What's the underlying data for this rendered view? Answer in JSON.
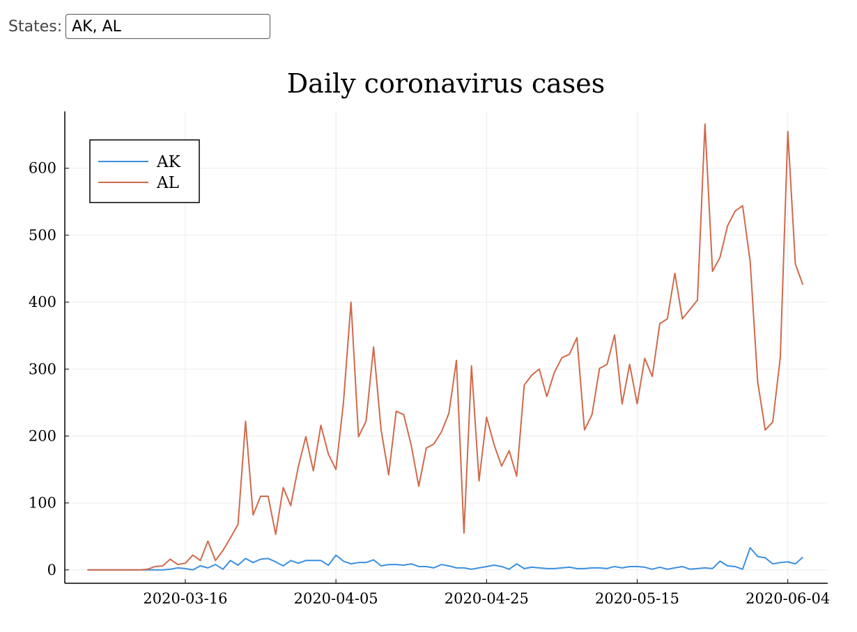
{
  "filter": {
    "label": "States:",
    "value": "AK, AL"
  },
  "colors": {
    "AK": "#3a8fe0",
    "AL": "#d0694a",
    "grid": "#ebebeb",
    "axis": "#000000"
  },
  "chart_data": {
    "type": "line",
    "title": "Daily coronavirus cases",
    "xlabel": "",
    "ylabel": "",
    "x_start": "2020-03-03",
    "x_ticks": [
      "2020-03-16",
      "2020-04-05",
      "2020-04-25",
      "2020-05-15",
      "2020-06-04"
    ],
    "y_ticks": [
      0,
      100,
      200,
      300,
      400,
      500,
      600
    ],
    "ylim": [
      -20,
      685
    ],
    "grid": true,
    "legend": "top-left",
    "series": [
      {
        "name": "AK",
        "values": [
          0,
          0,
          0,
          0,
          0,
          0,
          0,
          0,
          0,
          0,
          0,
          1,
          3,
          2,
          0,
          6,
          3,
          8,
          1,
          14,
          7,
          17,
          11,
          16,
          17,
          12,
          6,
          14,
          10,
          14,
          14,
          14,
          7,
          22,
          13,
          9,
          11,
          11,
          15,
          6,
          8,
          8,
          7,
          9,
          5,
          5,
          3,
          8,
          6,
          3,
          3,
          1,
          3,
          5,
          7,
          5,
          1,
          9,
          2,
          4,
          3,
          2,
          2,
          3,
          4,
          2,
          2,
          3,
          3,
          2,
          5,
          3,
          5,
          5,
          4,
          1,
          4,
          1,
          3,
          5,
          1,
          2,
          3,
          2,
          13,
          6,
          5,
          1,
          33,
          20,
          18,
          9,
          11,
          12,
          9,
          19
        ]
      },
      {
        "name": "AL",
        "values": [
          0,
          0,
          0,
          0,
          0,
          0,
          0,
          0,
          1,
          5,
          6,
          16,
          8,
          10,
          22,
          14,
          43,
          14,
          29,
          48,
          68,
          222,
          82,
          110,
          110,
          53,
          123,
          96,
          154,
          199,
          148,
          216,
          173,
          150,
          250,
          400,
          199,
          222,
          333,
          209,
          142,
          237,
          232,
          186,
          125,
          182,
          188,
          206,
          234,
          313,
          55,
          305,
          133,
          228,
          187,
          155,
          178,
          140,
          276,
          291,
          300,
          259,
          295,
          317,
          322,
          347,
          209,
          232,
          301,
          307,
          351,
          248,
          307,
          248,
          316,
          289,
          368,
          375,
          443,
          375,
          389,
          403,
          666,
          446,
          467,
          514,
          536,
          544,
          461,
          281,
          209,
          221,
          317,
          655,
          457,
          426
        ]
      }
    ]
  }
}
